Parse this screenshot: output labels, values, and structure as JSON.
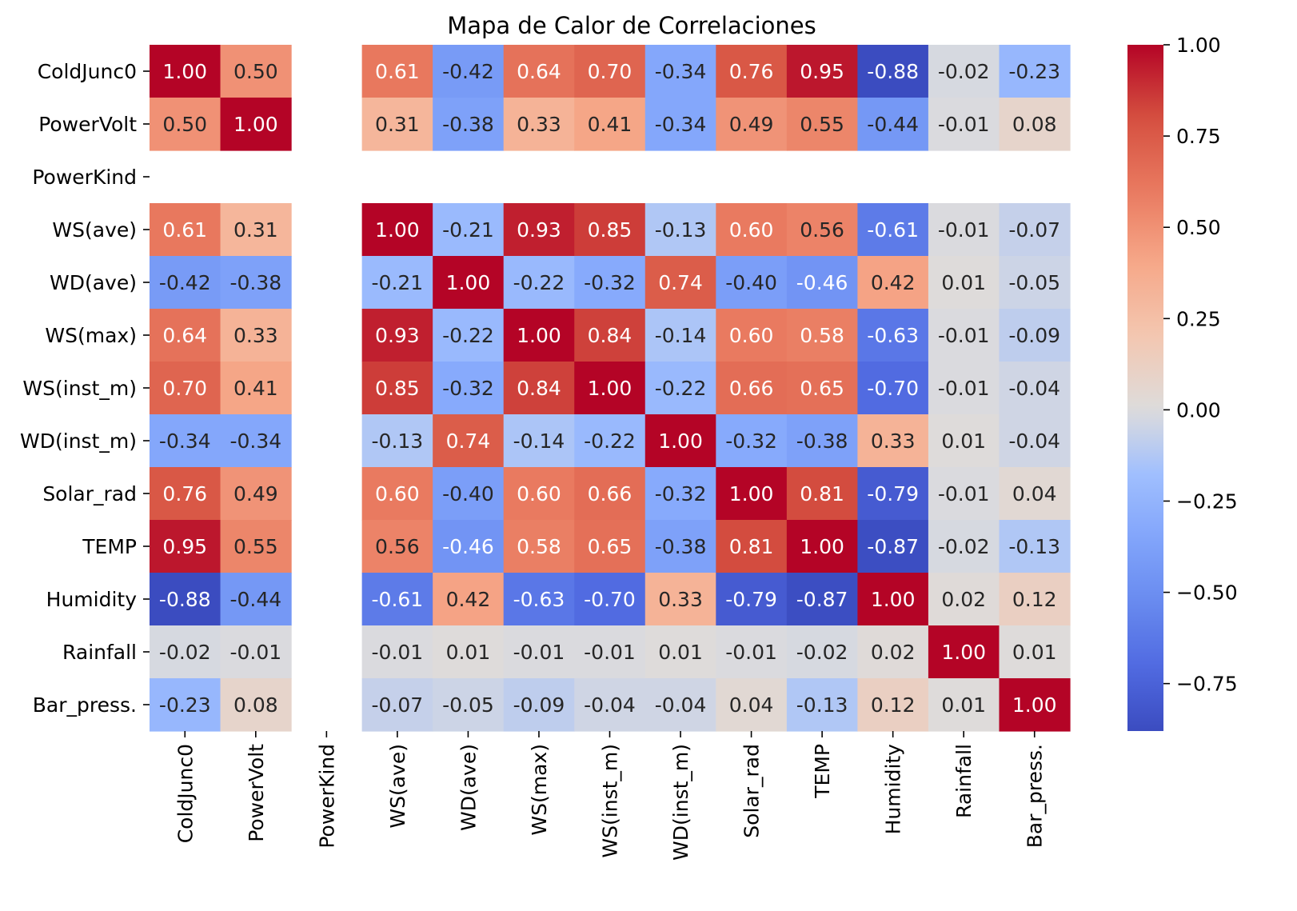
{
  "chart_data": {
    "type": "heatmap",
    "title": "Mapa de Calor de Correlaciones",
    "row_labels": [
      "ColdJunc0",
      "PowerVolt",
      "PowerKind",
      "WS(ave)",
      "WD(ave)",
      "WS(max)",
      "WS(inst_m)",
      "WD(inst_m)",
      "Solar_rad",
      "TEMP",
      "Humidity",
      "Rainfall",
      "Bar_press."
    ],
    "col_labels": [
      "ColdJunc0",
      "PowerVolt",
      "PowerKind",
      "WS(ave)",
      "WD(ave)",
      "WS(max)",
      "WS(inst_m)",
      "WD(inst_m)",
      "Solar_rad",
      "TEMP",
      "Humidity",
      "Rainfall",
      "Bar_press."
    ],
    "values": [
      [
        1.0,
        0.5,
        null,
        0.61,
        -0.42,
        0.64,
        0.7,
        -0.34,
        0.76,
        0.95,
        -0.88,
        -0.02,
        -0.23
      ],
      [
        0.5,
        1.0,
        null,
        0.31,
        -0.38,
        0.33,
        0.41,
        -0.34,
        0.49,
        0.55,
        -0.44,
        -0.01,
        0.08
      ],
      [
        null,
        null,
        null,
        null,
        null,
        null,
        null,
        null,
        null,
        null,
        null,
        null,
        null
      ],
      [
        0.61,
        0.31,
        null,
        1.0,
        -0.21,
        0.93,
        0.85,
        -0.13,
        0.6,
        0.56,
        -0.61,
        -0.01,
        -0.07
      ],
      [
        -0.42,
        -0.38,
        null,
        -0.21,
        1.0,
        -0.22,
        -0.32,
        0.74,
        -0.4,
        -0.46,
        0.42,
        0.01,
        -0.05
      ],
      [
        0.64,
        0.33,
        null,
        0.93,
        -0.22,
        1.0,
        0.84,
        -0.14,
        0.6,
        0.58,
        -0.63,
        -0.01,
        -0.09
      ],
      [
        0.7,
        0.41,
        null,
        0.85,
        -0.32,
        0.84,
        1.0,
        -0.22,
        0.66,
        0.65,
        -0.7,
        -0.01,
        -0.04
      ],
      [
        -0.34,
        -0.34,
        null,
        -0.13,
        0.74,
        -0.14,
        -0.22,
        1.0,
        -0.32,
        -0.38,
        0.33,
        0.01,
        -0.04
      ],
      [
        0.76,
        0.49,
        null,
        0.6,
        -0.4,
        0.6,
        0.66,
        -0.32,
        1.0,
        0.81,
        -0.79,
        -0.01,
        0.04
      ],
      [
        0.95,
        0.55,
        null,
        0.56,
        -0.46,
        0.58,
        0.65,
        -0.38,
        0.81,
        1.0,
        -0.87,
        -0.02,
        -0.13
      ],
      [
        -0.88,
        -0.44,
        null,
        -0.61,
        0.42,
        -0.63,
        -0.7,
        0.33,
        -0.79,
        -0.87,
        1.0,
        0.02,
        0.12
      ],
      [
        -0.02,
        -0.01,
        null,
        -0.01,
        0.01,
        -0.01,
        -0.01,
        0.01,
        -0.01,
        -0.02,
        0.02,
        1.0,
        0.01
      ],
      [
        -0.23,
        0.08,
        null,
        -0.07,
        -0.05,
        -0.09,
        -0.04,
        -0.04,
        0.04,
        -0.13,
        0.12,
        0.01,
        1.0
      ]
    ],
    "colormap": "coolwarm",
    "vmin": -0.88,
    "vmax": 1.0,
    "colorbar_ticks": [
      1.0,
      0.75,
      0.5,
      0.25,
      0.0,
      -0.25,
      -0.5,
      -0.75
    ],
    "colorbar_tick_labels": [
      "1.00",
      "0.75",
      "0.50",
      "0.25",
      "0.00",
      "−0.25",
      "−0.50",
      "−0.75"
    ],
    "annotation_format": "0.00"
  }
}
